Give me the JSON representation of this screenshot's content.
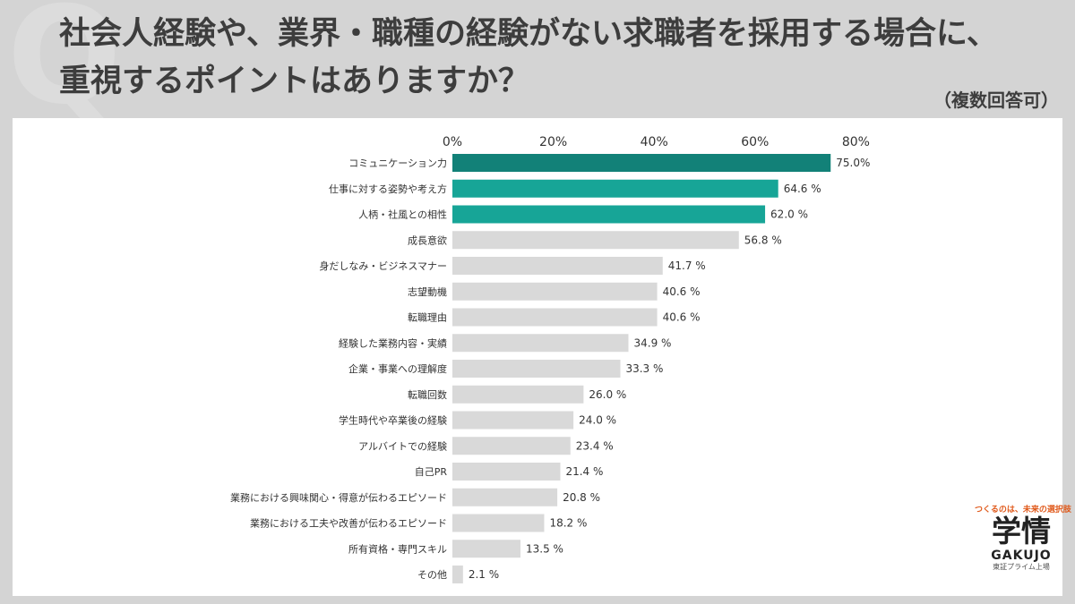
{
  "header": {
    "mark": "Q",
    "title": "社会人経験や、業界・職種の経験がない求職者を採用する場合に、重視するポイントはありますか？",
    "note": "（複数回答可）"
  },
  "brand": {
    "tagline": "つくるのは、未来の選択肢",
    "logo": "学情",
    "name": "GAKUJO",
    "sub": "東証プライム上場"
  },
  "colors": {
    "top1": "#128178",
    "top3": "#17a597",
    "other": "#d9d9d9"
  },
  "chart_data": {
    "type": "bar",
    "orientation": "horizontal",
    "categories": [
      "コミュニケーション力",
      "仕事に対する姿勢や考え方",
      "人柄・社風との相性",
      "成長意欲",
      "身だしなみ・ビジネスマナー",
      "志望動機",
      "転職理由",
      "経験した業務内容・実績",
      "企業・事業への理解度",
      "転職回数",
      "学生時代や卒業後の経験",
      "アルバイトでの経験",
      "自己PR",
      "業務における興味関心・得意が伝わるエピソード",
      "業務における工夫や改善が伝わるエピソード",
      "所有資格・専門スキル",
      "その他"
    ],
    "values": [
      75.0,
      64.6,
      62.0,
      56.8,
      41.7,
      40.6,
      40.6,
      34.9,
      33.3,
      26.0,
      24.0,
      23.4,
      21.4,
      20.8,
      18.2,
      13.5,
      2.1
    ],
    "value_labels": [
      "75.0%",
      "64.6 %",
      "62.0 %",
      "56.8 %",
      "41.7 %",
      "40.6 %",
      "40.6 %",
      "34.9 %",
      "33.3 %",
      "26.0 %",
      "24.0 %",
      "23.4 %",
      "21.4 %",
      "20.8 %",
      "18.2 %",
      "13.5 %",
      "2.1 %"
    ],
    "xticks": [
      "0%",
      "20%",
      "40%",
      "60%",
      "80%"
    ],
    "xtick_values": [
      0,
      20,
      40,
      60,
      80
    ],
    "xlim": [
      0,
      80
    ],
    "grid": false,
    "axis_position": "top"
  }
}
